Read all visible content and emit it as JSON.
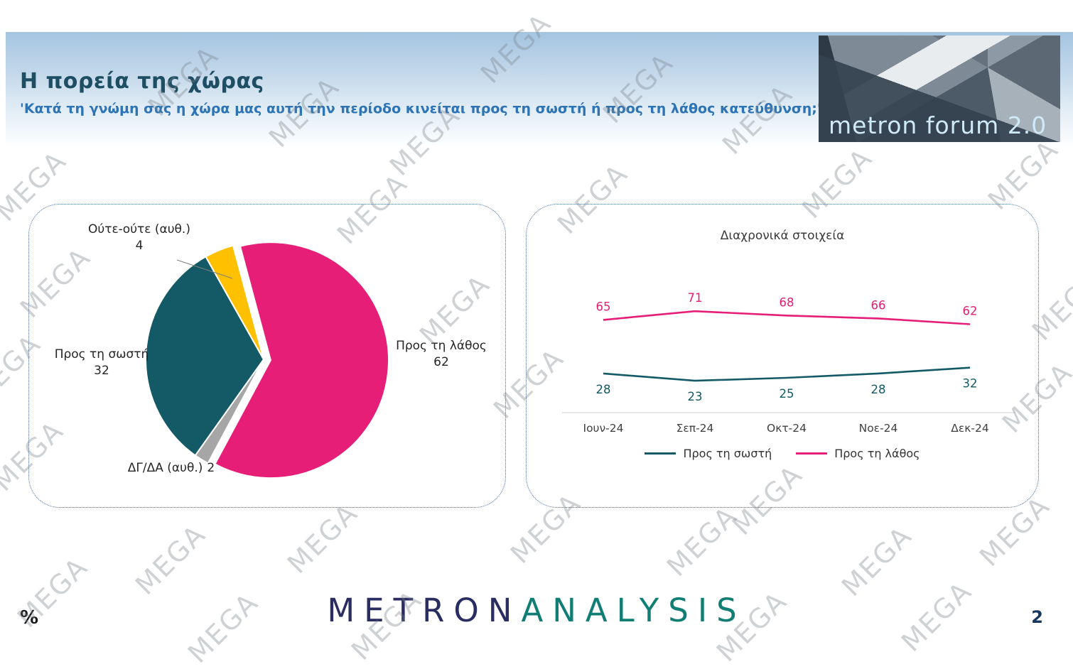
{
  "header": {
    "title": "Η πορεία της χώρας",
    "subtitle": "'Κατά τη γνώμη σας η χώρα μας αυτή την περίοδο κινείται προς τη σωστή ή προς τη λάθος κατεύθυνση;'",
    "logo_text": "metron forum 2.0"
  },
  "watermark": {
    "text": "MEGA"
  },
  "footer": {
    "percent_label": "%",
    "brand_metron": "METRON",
    "brand_analysis": "ANALYSIS",
    "page_number": "2"
  },
  "colors": {
    "pink": "#E61E78",
    "teal": "#135A66",
    "yellow": "#FFC000",
    "gray": "#A6A6A6",
    "subtitle_blue": "#2E74B5",
    "title_dark": "#1E4E63"
  },
  "chart_data": [
    {
      "type": "pie",
      "unit": "%",
      "start_angle": -15,
      "slices": [
        {
          "label": "Προς τη λάθος",
          "value": 62,
          "color": "#E61E78",
          "exploded": true
        },
        {
          "label": "ΔΓ/ΔΑ (αυθ.)",
          "value": 2,
          "color": "#A6A6A6",
          "exploded": false
        },
        {
          "label": "Προς τη σωστή",
          "value": 32,
          "color": "#135A66",
          "exploded": false
        },
        {
          "label": "Ούτε-ούτε (αυθ.)",
          "value": 4,
          "color": "#FFC000",
          "exploded": false
        }
      ]
    },
    {
      "type": "line",
      "title": "Διαχρονικά στοιχεία",
      "categories": [
        "Ιουν-24",
        "Σεπ-24",
        "Οκτ-24",
        "Νοε-24",
        "Δεκ-24"
      ],
      "series": [
        {
          "name": "Προς τη σωστή",
          "values": [
            28,
            23,
            25,
            28,
            32
          ],
          "color": "#135A66",
          "label_position": "below"
        },
        {
          "name": "Προς τη λάθος",
          "values": [
            65,
            71,
            68,
            66,
            62
          ],
          "color": "#E61E78",
          "label_position": "above"
        }
      ],
      "ylim": [
        0,
        100
      ],
      "grid": false,
      "legend_position": "bottom"
    }
  ]
}
